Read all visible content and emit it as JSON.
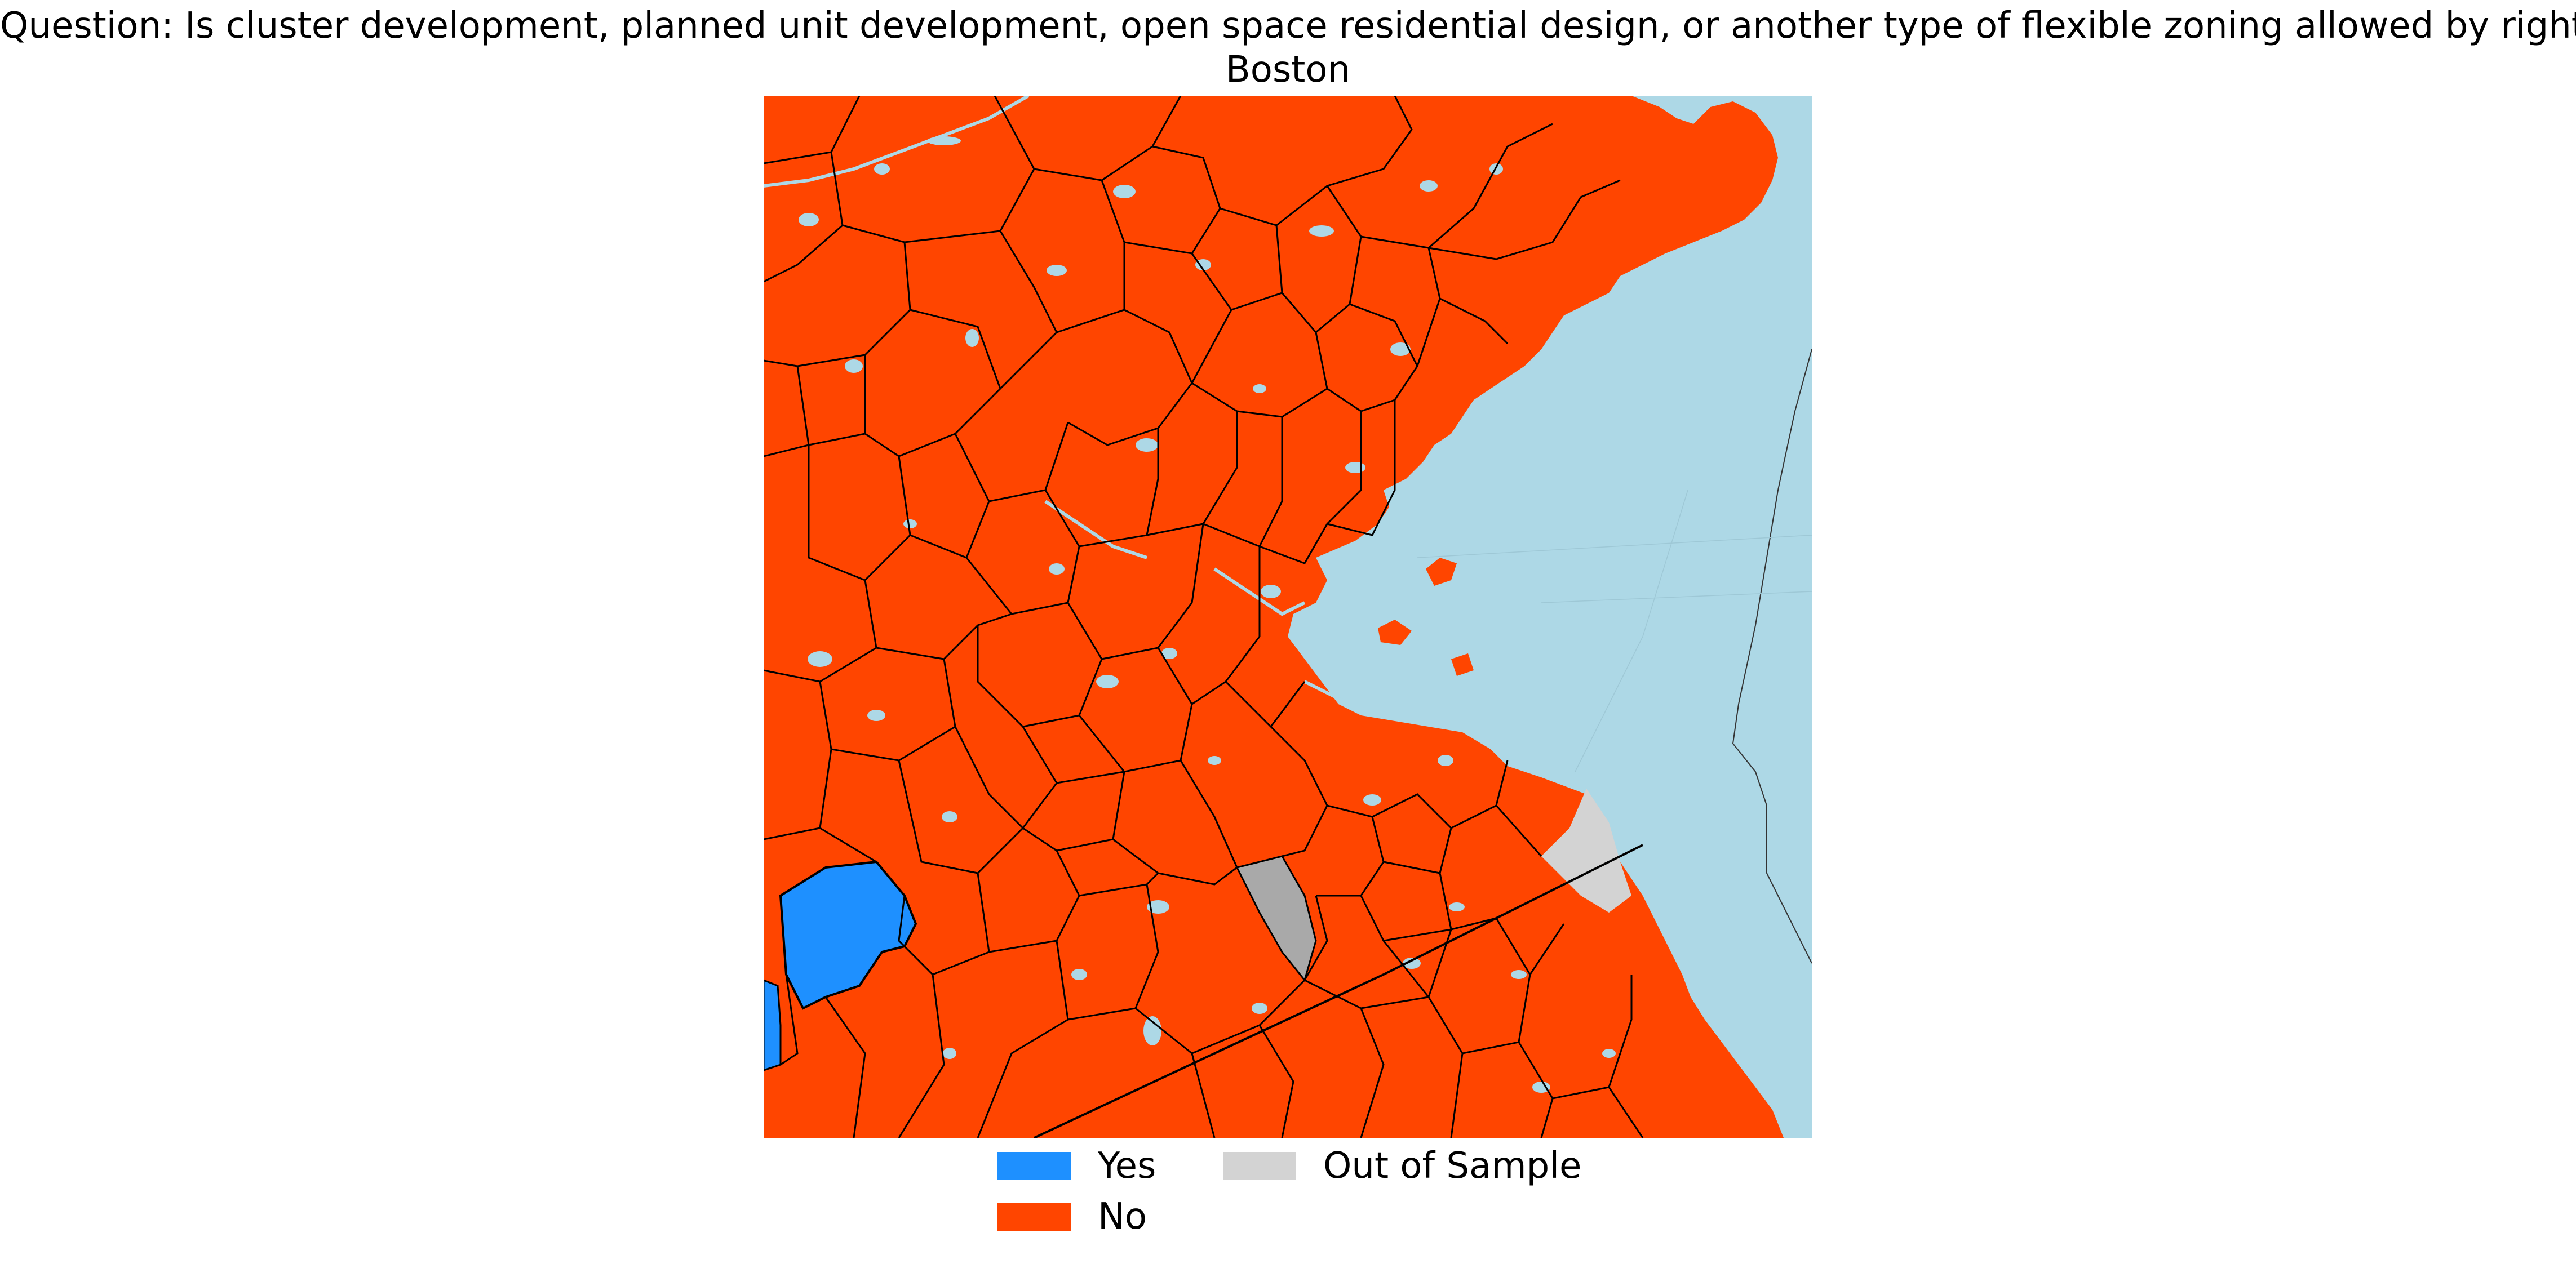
{
  "title": {
    "question": "Question: Is cluster development, planned unit development, open space residential design, or another type of flexible zoning allowed by right?",
    "region": "Boston"
  },
  "colors": {
    "yes": "#1e90ff",
    "no": "#ff4500",
    "out_of_sample": "#d3d3d3",
    "out_of_sample_in_region": "#a9a9a9",
    "water": "#add8e6",
    "boundary": "#000000"
  },
  "legend": {
    "items": [
      {
        "key": "yes",
        "label": "Yes",
        "color": "#1e90ff"
      },
      {
        "key": "no",
        "label": "No",
        "color": "#ff4500"
      },
      {
        "key": "out_of_sample",
        "label": "Out of Sample",
        "color": "#d3d3d3"
      }
    ]
  }
}
